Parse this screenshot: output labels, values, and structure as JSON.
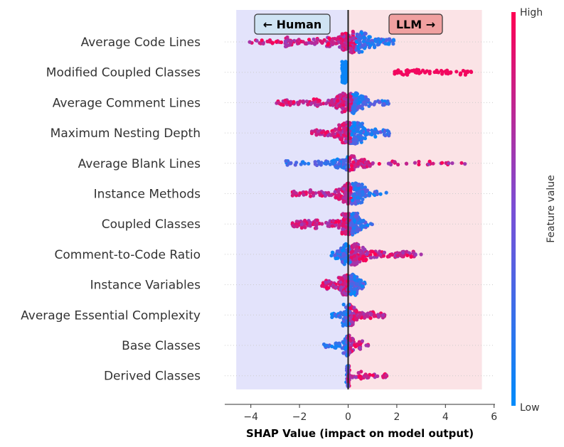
{
  "chart_data": {
    "type": "beeswarm",
    "xlabel": "SHAP Value (impact on model output)",
    "xlim": [
      -5,
      6
    ],
    "xticks": [
      -4,
      -2,
      0,
      2,
      4,
      6
    ],
    "xtick_labels": [
      "−4",
      "−2",
      "0",
      "2",
      "4",
      "6"
    ],
    "regions": [
      {
        "label": "← Human",
        "x_from": -4.6,
        "x_to": 0,
        "color": "#e3e3fb"
      },
      {
        "label": "LLM →",
        "x_from": 0,
        "x_to": 5.5,
        "color": "#fbe3e6"
      }
    ],
    "annotations": {
      "human": {
        "label": "← Human",
        "x": -1.9,
        "fill": "#cfe3f3"
      },
      "llm": {
        "label": "LLM →",
        "x": 2.8,
        "fill": "#f0a0a0"
      }
    },
    "colorbar": {
      "label": "Feature value",
      "high_label": "High",
      "low_label": "Low",
      "high_color": "#ff0052",
      "low_color": "#008bfb"
    },
    "features": [
      {
        "name": "Average Code Lines",
        "min": -4.1,
        "max": 1.9,
        "high_side": "neg",
        "hub": 0.3,
        "spread": 0.9,
        "density": 1.0
      },
      {
        "name": "Modified Coupled Classes",
        "min": -0.25,
        "max": 5.1,
        "high_side": "pos",
        "hub": 3.2,
        "spread": 1.2,
        "density": 0.7,
        "bimodal": [
          {
            "from": -0.25,
            "to": -0.05,
            "value": 0.05,
            "weight": 1.0
          },
          {
            "from": 1.9,
            "to": 5.1,
            "value": 0.95,
            "weight": 0.55
          }
        ]
      },
      {
        "name": "Average Comment Lines",
        "min": -3.0,
        "max": 1.7,
        "high_side": "neg",
        "hub": 0.15,
        "spread": 0.7,
        "density": 0.9
      },
      {
        "name": "Maximum Nesting Depth",
        "min": -1.5,
        "max": 1.7,
        "high_side": "neg",
        "hub": 0.1,
        "spread": 0.6,
        "density": 0.9
      },
      {
        "name": "Average Blank Lines",
        "min": -2.6,
        "max": 4.9,
        "high_side": "pos",
        "hub": 0.05,
        "spread": 0.9,
        "density": 0.55
      },
      {
        "name": "Instance Methods",
        "min": -2.3,
        "max": 1.6,
        "high_side": "neg",
        "hub": 0.15,
        "spread": 0.6,
        "density": 0.8
      },
      {
        "name": "Coupled Classes",
        "min": -2.3,
        "max": 1.0,
        "high_side": "neg",
        "hub": 0.1,
        "spread": 0.5,
        "density": 0.8
      },
      {
        "name": "Comment-to-Code Ratio",
        "min": -0.7,
        "max": 3.0,
        "high_side": "pos",
        "hub": 0.1,
        "spread": 0.6,
        "density": 0.8
      },
      {
        "name": "Instance Variables",
        "min": -1.1,
        "max": 0.7,
        "high_side": "neg",
        "hub": 0.05,
        "spread": 0.4,
        "density": 0.7
      },
      {
        "name": "Average Essential Complexity",
        "min": -0.7,
        "max": 1.5,
        "high_side": "pos",
        "hub": 0.05,
        "spread": 0.3,
        "density": 0.6
      },
      {
        "name": "Base Classes",
        "min": -1.0,
        "max": 0.9,
        "high_side": "pos",
        "hub": 0.0,
        "spread": 0.2,
        "density": 0.45
      },
      {
        "name": "Derived Classes",
        "min": -0.1,
        "max": 1.6,
        "high_side": "pos",
        "hub": 0.0,
        "spread": 0.05,
        "density": 0.35
      }
    ]
  }
}
